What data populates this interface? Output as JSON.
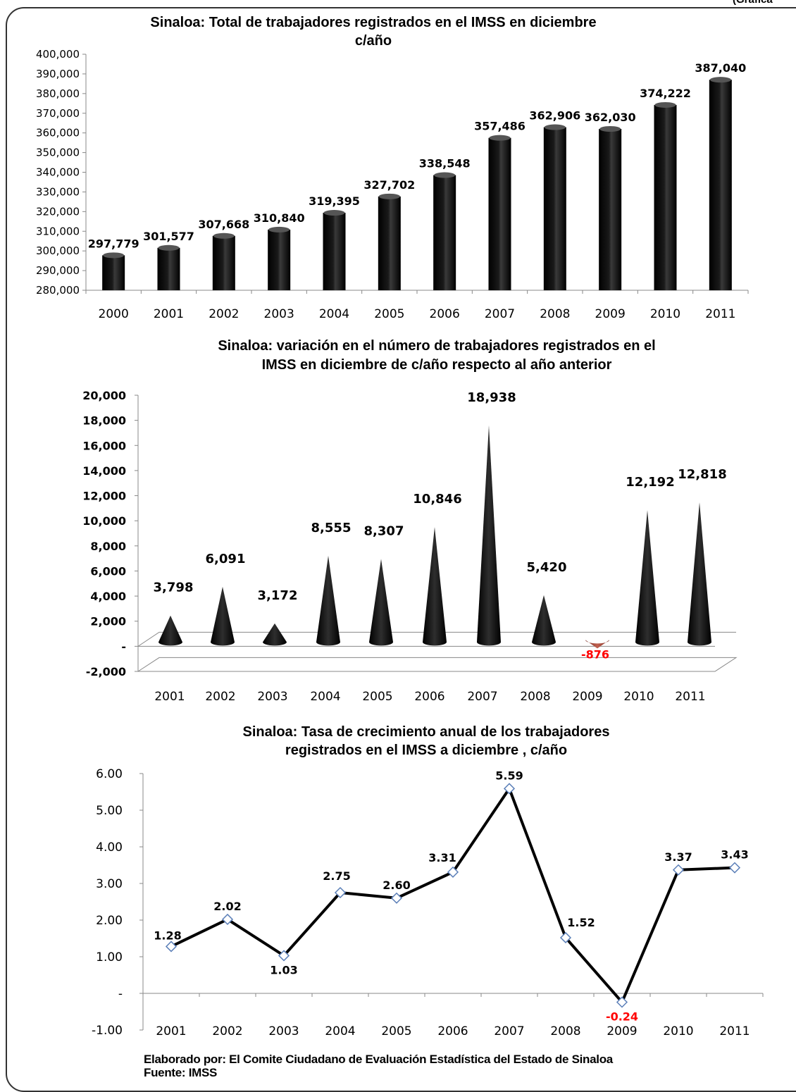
{
  "corner_note": "(Gráfica",
  "footer": {
    "elaborado": "Elaborado por:  El Comite Ciudadano de Evaluación Estadística del Estado de Sinaloa",
    "fuente": "Fuente: IMSS"
  },
  "chart_data": [
    {
      "type": "bar",
      "title": "Sinaloa: Total de trabajadores  registrados  en  el IMSS en diciembre",
      "title_line2": "c/año",
      "categories": [
        "2000",
        "2001",
        "2002",
        "2003",
        "2004",
        "2005",
        "2006",
        "2007",
        "2008",
        "2009",
        "2010",
        "2011"
      ],
      "values": [
        297779,
        301577,
        307668,
        310840,
        319395,
        327702,
        338548,
        357486,
        362906,
        362030,
        374222,
        387040
      ],
      "value_labels": [
        "297,779",
        "301,577",
        "307,668",
        "310,840",
        "319,395",
        "327,702",
        "338,548",
        "357,486",
        "362,906",
        "362,030",
        "374,222",
        "387,040"
      ],
      "ylim": [
        280000,
        400000
      ],
      "yticks": [
        "280,000",
        "290,000",
        "300,000",
        "310,000",
        "320,000",
        "330,000",
        "340,000",
        "350,000",
        "360,000",
        "370,000",
        "380,000",
        "390,000",
        "400,000"
      ],
      "bar_color": "#000000",
      "grid": false,
      "legend": "none"
    },
    {
      "type": "bar",
      "shape": "cone",
      "title": "Sinaloa: variación  en  el número de trabajadores  registrados  en el",
      "title_line2": "IMSS en diciembre de  c/año  respecto  al año anterior",
      "categories": [
        "2001",
        "2002",
        "2003",
        "2004",
        "2005",
        "2006",
        "2007",
        "2008",
        "2009",
        "2010",
        "2011"
      ],
      "values": [
        3798,
        6091,
        3172,
        8555,
        8307,
        10846,
        18938,
        5420,
        -876,
        12192,
        12818
      ],
      "value_labels": [
        "3,798",
        "6,091",
        "3,172",
        "8,555",
        "8,307",
        "10,846",
        "18,938",
        "5,420",
        "-876",
        "12,192",
        "12,818"
      ],
      "ylim": [
        -2000,
        20000
      ],
      "yticks": [
        "-2,000",
        "-",
        "2,000",
        "4,000",
        "6,000",
        "8,000",
        "10,000",
        "12,000",
        "14,000",
        "16,000",
        "18,000",
        "20,000"
      ],
      "positive_color": "#000000",
      "negative_color": "#b24c3c",
      "negative_label_color": "#ff0000",
      "grid": false,
      "legend": "none"
    },
    {
      "type": "line",
      "title": "Sinaloa: Tasa de crecimiento anual de los trabajadores",
      "title_line2": "registrados en el IMSS a  diciembre , c/año",
      "categories": [
        "2001",
        "2002",
        "2003",
        "2004",
        "2005",
        "2006",
        "2007",
        "2008",
        "2009",
        "2010",
        "2011"
      ],
      "values": [
        1.28,
        2.02,
        1.03,
        2.75,
        2.6,
        3.31,
        5.59,
        1.52,
        -0.24,
        3.37,
        3.43
      ],
      "value_labels": [
        "1.28",
        "2.02",
        "1.03",
        "2.75",
        "2.60",
        "3.31",
        "5.59",
        "1.52",
        "-0.24",
        "3.37",
        "3.43"
      ],
      "ylim": [
        -1,
        6
      ],
      "yticks": [
        "-1.00",
        "-",
        "1.00",
        "2.00",
        "3.00",
        "4.00",
        "5.00",
        "6.00"
      ],
      "line_color": "#000000",
      "marker": "diamond",
      "marker_color": "#5b7fb8",
      "negative_label_color": "#ff0000",
      "grid": false,
      "legend": "none"
    }
  ]
}
